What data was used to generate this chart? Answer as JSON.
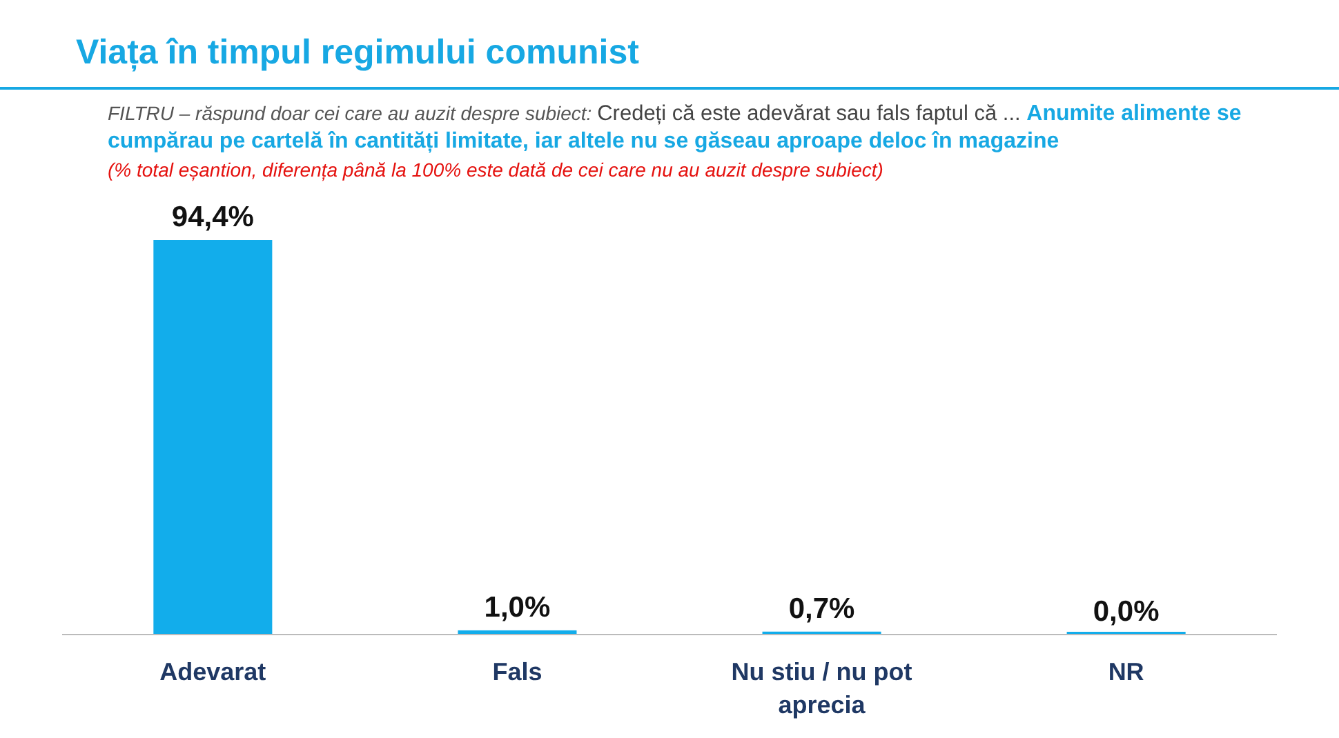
{
  "chart_data": {
    "type": "bar",
    "title": "Viața în timpul regimului comunist",
    "annotations": [
      "FILTRU – răspund doar cei care au auzit despre subiect:",
      "Credeți că este adevărat sau fals faptul că ...",
      "Anumite alimente se cumpărau pe cartelă în cantități limitate, iar altele nu se găseau aproape deloc în magazine",
      "(% total eșantion, diferența până la 100% este dată de cei care nu au auzit despre subiect)"
    ],
    "categories": [
      "Adevarat",
      "Fals",
      "Nu stiu / nu pot aprecia",
      "NR"
    ],
    "values": [
      94.4,
      1.0,
      0.7,
      0.0
    ],
    "value_labels": [
      "94,4%",
      "1,0%",
      "0,7%",
      "0,0%"
    ],
    "color": "#12adeb",
    "grid": false
  }
}
